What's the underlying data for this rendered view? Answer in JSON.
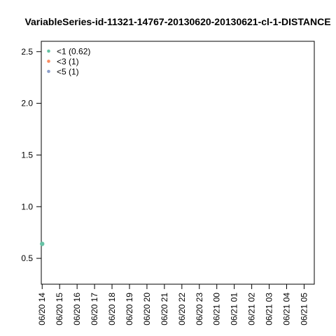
{
  "chart_data": {
    "type": "scatter",
    "title": "VariableSeries-id-11321-14767-20130620-20130621-cl-1-DISTANCE",
    "xlabel": "",
    "ylabel": "",
    "x_tick_labels": [
      "06/20 14",
      "06/20 15",
      "06/20 16",
      "06/20 17",
      "06/20 18",
      "06/20 19",
      "06/20 20",
      "06/20 21",
      "06/20 22",
      "06/20 23",
      "06/21 00",
      "06/21 01",
      "06/21 02",
      "06/21 03",
      "06/21 04",
      "06/21 05"
    ],
    "y_ticks": [
      0.5,
      1.0,
      1.5,
      2.0,
      2.5
    ],
    "y_tick_labels": [
      "0.5",
      "1.0",
      "1.5",
      "2.0",
      "2.5"
    ],
    "xlim": [
      "06/20 13:57",
      "06/21 05:35"
    ],
    "ylim": [
      0.25,
      2.6
    ],
    "grid": false,
    "legend_position": "top-left",
    "series": [
      {
        "name": "<1 (0.62)",
        "color": "#66c2a5",
        "points": [
          {
            "x": "06/20 14:00",
            "y": 0.64
          }
        ]
      },
      {
        "name": "<3 (1)",
        "color": "#fc8d62",
        "points": []
      },
      {
        "name": "<5 (1)",
        "color": "#8da0cb",
        "points": []
      }
    ]
  }
}
